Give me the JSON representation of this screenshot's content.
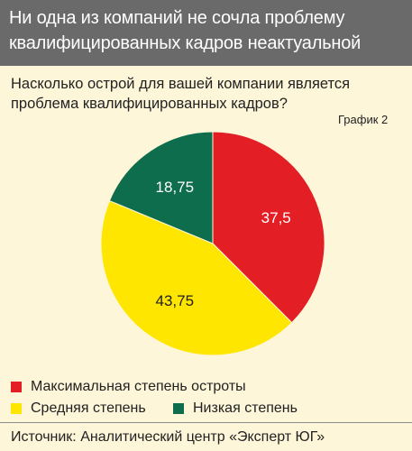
{
  "header": {
    "line1": "Ни одна из компаний не сочла проблему",
    "line2": "квалифицированных кадров неактуальной"
  },
  "question": {
    "line1": "Насколько острой для вашей компании является",
    "line2": "проблема квалифицированных кадров?"
  },
  "graph_label": "График 2",
  "chart_data": {
    "type": "pie",
    "slices": [
      {
        "label": "Максимальная степень остроты",
        "value": 37.5,
        "display": "37,5",
        "color": "#e31e24"
      },
      {
        "label": "Средняя степень",
        "value": 43.75,
        "display": "43,75",
        "color": "#ffe600"
      },
      {
        "label": "Низкая степень",
        "value": 18.75,
        "display": "18,75",
        "color": "#0e6d4c"
      }
    ],
    "legend": [
      {
        "label": "Максимальная степень остроты",
        "color": "#e31e24"
      },
      {
        "label": "Средняя степень",
        "color": "#ffe600"
      },
      {
        "label": "Низкая степень",
        "color": "#0e6d4c"
      }
    ]
  },
  "source": "Источник: Аналитический центр «Эксперт ЮГ»"
}
